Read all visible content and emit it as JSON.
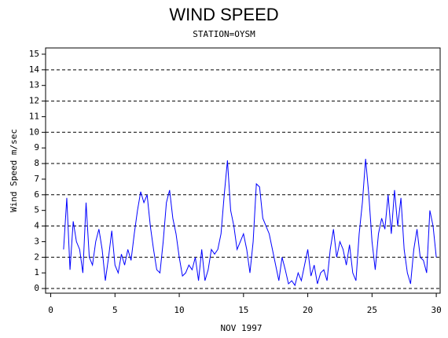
{
  "chart_data": {
    "type": "line",
    "title": "WIND SPEED",
    "subtitle": "STATION=OYSM",
    "x_label": "NOV 1997",
    "y_label": "Wind Speed m/sec",
    "xlim": [
      -0.4,
      30.3
    ],
    "ylim": [
      -0.3,
      15.4
    ],
    "xticks": [
      0,
      5,
      10,
      15,
      20,
      25,
      30
    ],
    "yticks": [
      0,
      1,
      2,
      3,
      4,
      5,
      6,
      7,
      8,
      9,
      10,
      11,
      12,
      13,
      14,
      15
    ],
    "ygrid": [
      0,
      2,
      4,
      6,
      8,
      10,
      12,
      14
    ],
    "series": [
      {
        "name": "Wind Speed",
        "color": "#0000ff",
        "x": [
          1,
          1.25,
          1.5,
          1.75,
          2,
          2.25,
          2.5,
          2.75,
          3,
          3.25,
          3.5,
          3.75,
          4,
          4.25,
          4.5,
          4.75,
          5,
          5.25,
          5.5,
          5.75,
          6,
          6.25,
          6.5,
          6.75,
          7,
          7.25,
          7.5,
          7.75,
          8,
          8.25,
          8.5,
          8.75,
          9,
          9.25,
          9.5,
          9.75,
          10,
          10.25,
          10.5,
          10.75,
          11,
          11.25,
          11.5,
          11.75,
          12,
          12.25,
          12.5,
          12.75,
          13,
          13.25,
          13.5,
          13.75,
          14,
          14.25,
          14.5,
          14.75,
          15,
          15.25,
          15.5,
          15.75,
          16,
          16.25,
          16.5,
          16.75,
          17,
          17.25,
          17.5,
          17.75,
          18,
          18.25,
          18.5,
          18.75,
          19,
          19.25,
          19.5,
          19.75,
          20,
          20.25,
          20.5,
          20.75,
          21,
          21.25,
          21.5,
          21.75,
          22,
          22.25,
          22.5,
          22.75,
          23,
          23.25,
          23.5,
          23.75,
          24,
          24.25,
          24.5,
          24.75,
          25,
          25.25,
          25.5,
          25.75,
          26,
          26.25,
          26.5,
          26.75,
          27,
          27.25,
          27.5,
          27.75,
          28,
          28.25,
          28.5,
          28.75,
          29,
          29.25,
          29.5,
          29.75,
          30
        ],
        "values": [
          2.5,
          5.8,
          1.2,
          4.3,
          3,
          2.5,
          1,
          5.5,
          2,
          1.5,
          3,
          3.8,
          2.5,
          0.5,
          2,
          3.7,
          1.5,
          1,
          2.2,
          1.5,
          2.5,
          1.8,
          3.5,
          5,
          6.2,
          5.5,
          6,
          4,
          2.5,
          1.2,
          1,
          3,
          5.5,
          6.3,
          4.5,
          3.5,
          2,
          0.8,
          1,
          1.5,
          1.2,
          2,
          0.5,
          2.5,
          0.5,
          1.2,
          2.5,
          2.2,
          2.5,
          3.5,
          6,
          8.2,
          5,
          4,
          2.5,
          3,
          3.5,
          2.5,
          1,
          3,
          6.7,
          6.5,
          4.5,
          4,
          3.5,
          2.5,
          1.5,
          0.5,
          2,
          1.2,
          0.3,
          0.5,
          0.2,
          1,
          0.5,
          1.5,
          2.5,
          0.8,
          1.5,
          0.3,
          1,
          1.2,
          0.5,
          2.5,
          3.8,
          2,
          3,
          2.5,
          1.5,
          2.8,
          1,
          0.5,
          3.5,
          5.5,
          8.3,
          6,
          3,
          1.2,
          3.5,
          4.5,
          3.8,
          6,
          3.5,
          6.3,
          4,
          5.8,
          2.5,
          1,
          0.3,
          2.5,
          3.8,
          2,
          1.8,
          1,
          5,
          4,
          2
        ]
      }
    ]
  }
}
